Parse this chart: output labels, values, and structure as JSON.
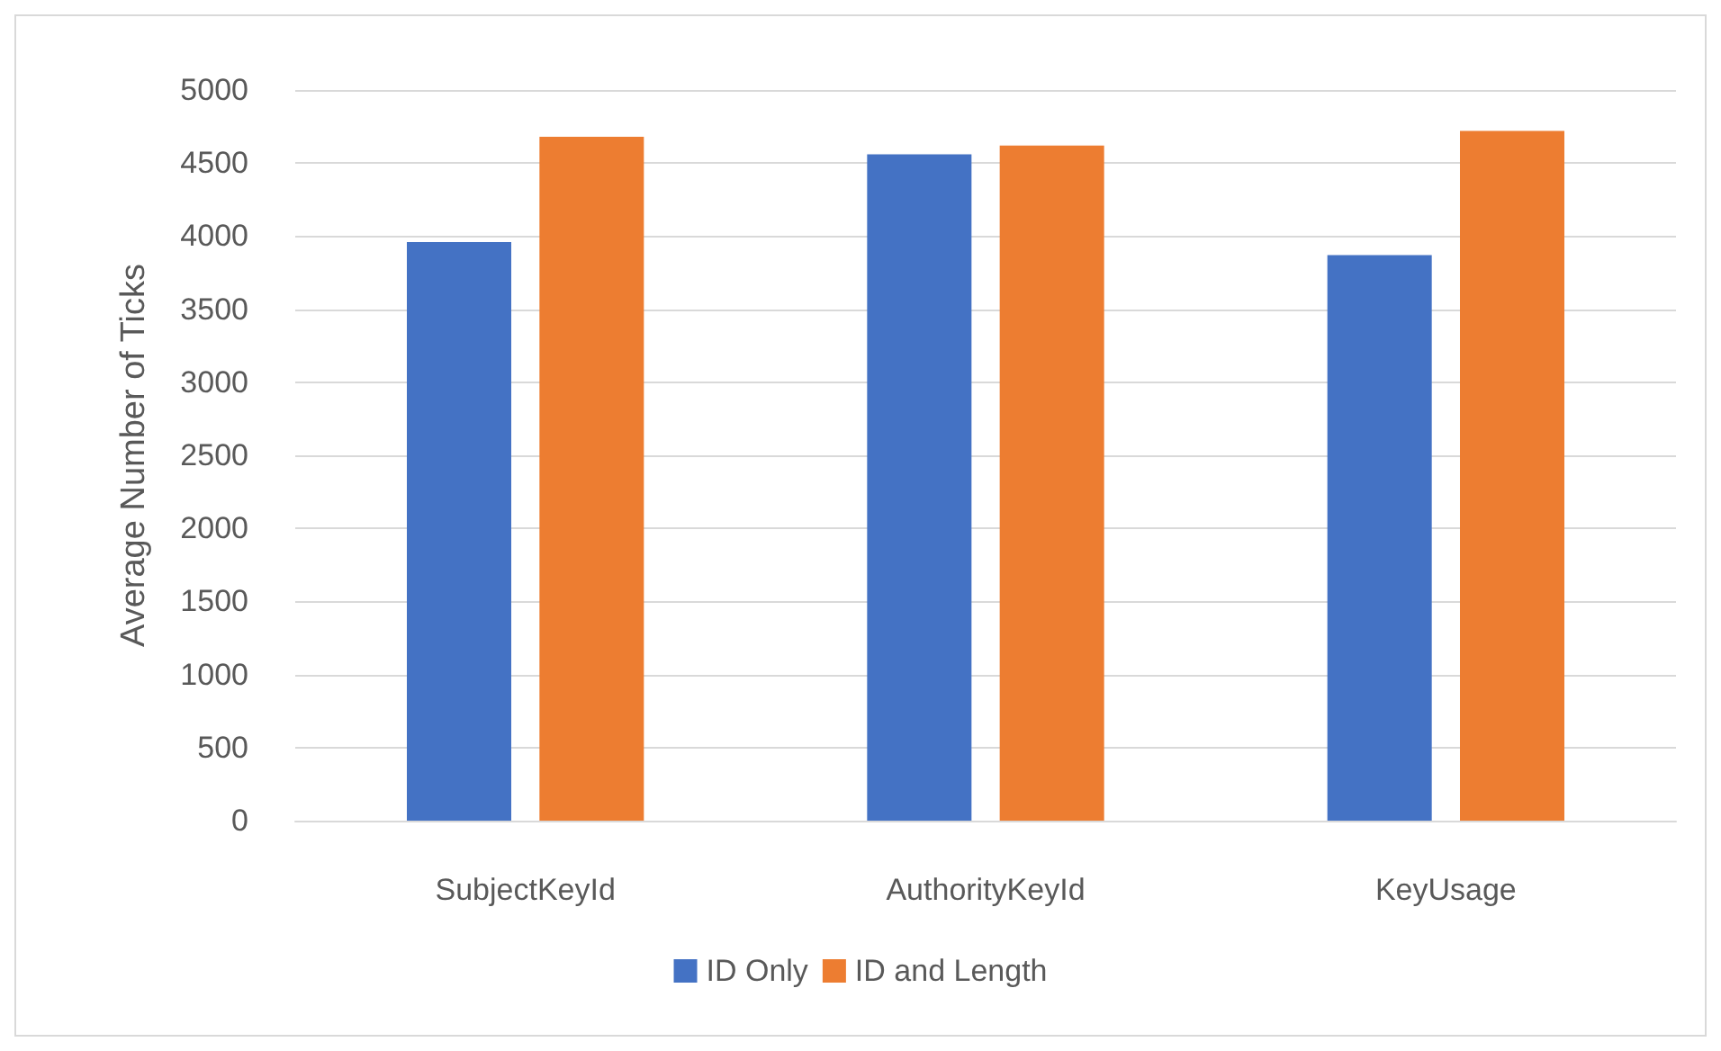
{
  "chart_data": {
    "type": "bar",
    "ylabel": "Average Number of Ticks",
    "categories": [
      "SubjectKeyId",
      "AuthorityKeyId",
      "KeyUsage"
    ],
    "series": [
      {
        "name": "ID Only",
        "color": "#4472c4",
        "values": [
          3960,
          4560,
          3870
        ]
      },
      {
        "name": "ID and Length",
        "color": "#ed7d31",
        "values": [
          4680,
          4620,
          4720
        ]
      }
    ],
    "ylim": [
      0,
      5000
    ],
    "yticks": [
      0,
      500,
      1000,
      1500,
      2000,
      2500,
      3000,
      3500,
      4000,
      4500,
      5000
    ],
    "grid": "y",
    "legend": "bottom"
  }
}
